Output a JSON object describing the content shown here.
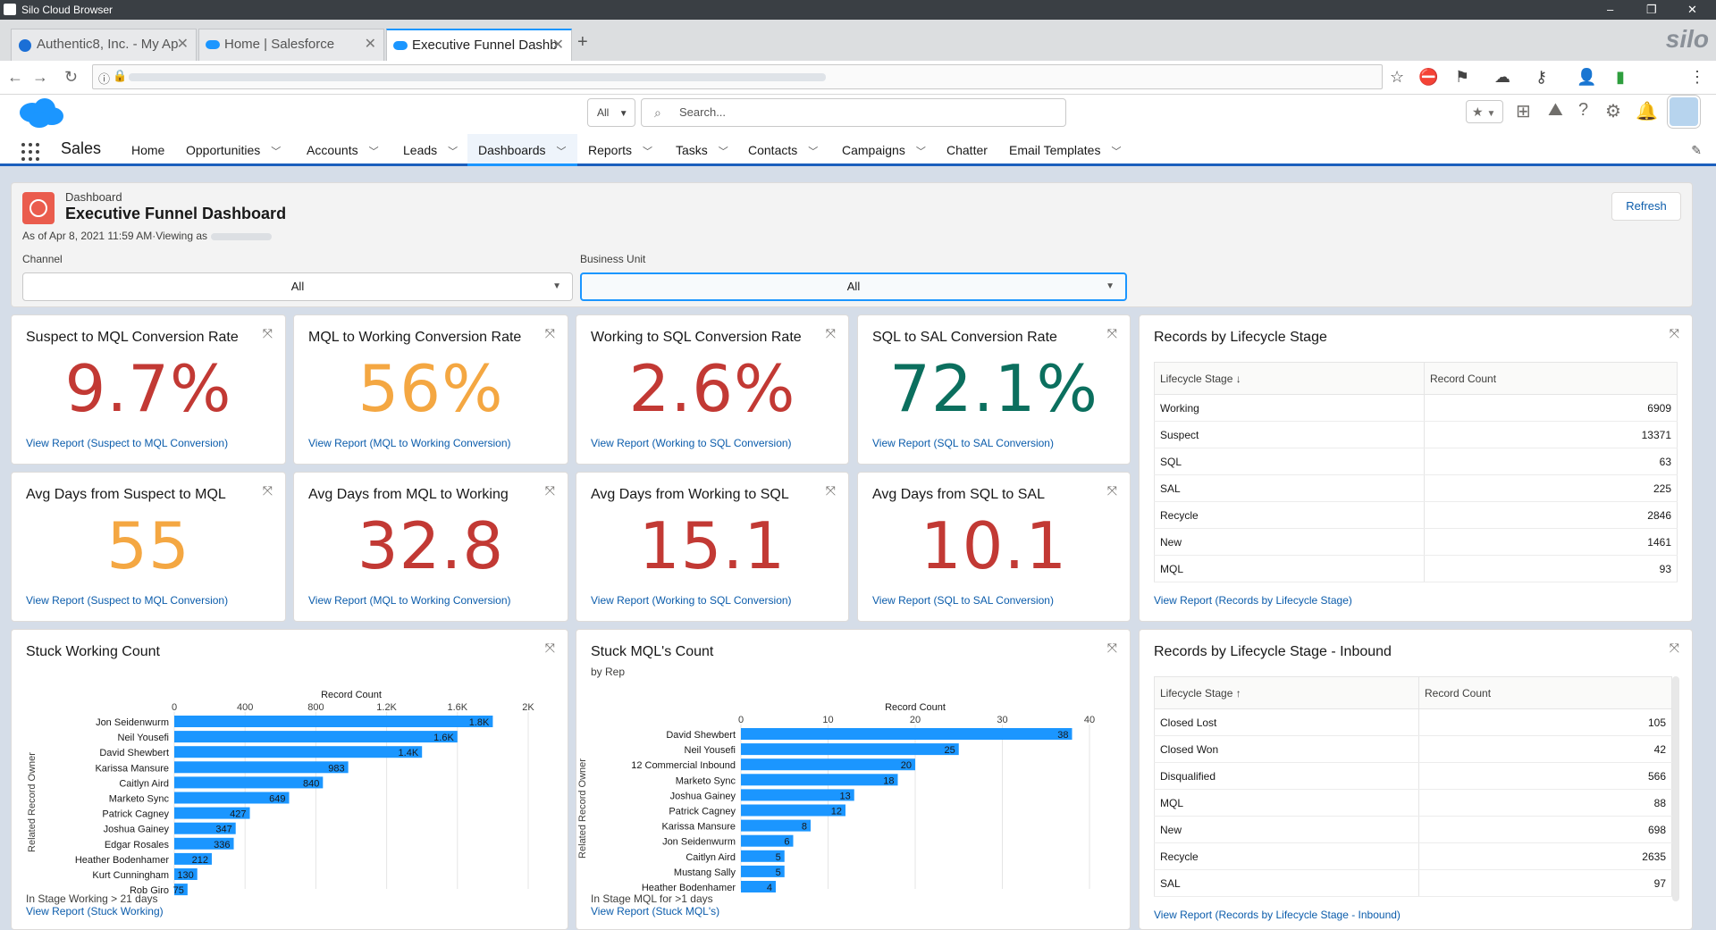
{
  "browser": {
    "title": "Silo Cloud Browser",
    "brand": "silo",
    "tabs": [
      {
        "label": "Authentic8, Inc. - My Ap"
      },
      {
        "label": "Home | Salesforce"
      },
      {
        "label": "Executive Funnel Dashb"
      }
    ],
    "new_tab": "+",
    "window_controls": [
      "–",
      "❐",
      "✕"
    ]
  },
  "header": {
    "search_scope": "All",
    "search_placeholder": "Search..."
  },
  "nav": {
    "app_name": "Sales",
    "items": [
      "Home",
      "Opportunities",
      "Accounts",
      "Leads",
      "Dashboards",
      "Reports",
      "Tasks",
      "Contacts",
      "Campaigns",
      "Chatter",
      "Email Templates"
    ],
    "active": "Dashboards"
  },
  "dashboard": {
    "label": "Dashboard",
    "title": "Executive Funnel Dashboard",
    "as_of": "As of Apr 8, 2021 11:59 AM·Viewing as",
    "refresh_label": "Refresh",
    "filters": [
      {
        "label": "Channel",
        "value": "All"
      },
      {
        "label": "Business Unit",
        "value": "All"
      }
    ]
  },
  "metrics": [
    {
      "title": "Suspect to MQL Conversion Rate",
      "value": "9.7%",
      "color": "#c23934",
      "link": "View Report (Suspect to MQL Conversion)"
    },
    {
      "title": "MQL to Working Conversion Rate",
      "value": "56%",
      "color": "#f4a742",
      "link": "View Report (MQL to Working Conversion)"
    },
    {
      "title": "Working to SQL Conversion Rate",
      "value": "2.6%",
      "color": "#c23934",
      "link": "View Report (Working to SQL Conversion)"
    },
    {
      "title": "SQL to SAL Conversion Rate",
      "value": "72.1%",
      "color": "#0b6f5e",
      "link": "View Report (SQL to SAL Conversion)"
    },
    {
      "title": "Avg Days from Suspect to MQL",
      "value": "55",
      "color": "#f4a742",
      "link": "View Report (Suspect to MQL Conversion)"
    },
    {
      "title": "Avg Days from MQL to Working",
      "value": "32.8",
      "color": "#c23934",
      "link": "View Report (MQL to Working Conversion)"
    },
    {
      "title": "Avg Days from Working to SQL",
      "value": "15.1",
      "color": "#c23934",
      "link": "View Report (Working to SQL Conversion)"
    },
    {
      "title": "Avg Days from SQL to SAL",
      "value": "10.1",
      "color": "#c23934",
      "link": "View Report (SQL to SAL Conversion)"
    }
  ],
  "lifecycle_table": {
    "title": "Records by Lifecycle Stage",
    "col1": "Lifecycle Stage ↓",
    "col2": "Record Count",
    "rows": [
      {
        "stage": "Working",
        "count": "6909"
      },
      {
        "stage": "Suspect",
        "count": "13371"
      },
      {
        "stage": "SQL",
        "count": "63"
      },
      {
        "stage": "SAL",
        "count": "225"
      },
      {
        "stage": "Recycle",
        "count": "2846"
      },
      {
        "stage": "New",
        "count": "1461"
      },
      {
        "stage": "MQL",
        "count": "93"
      }
    ],
    "link": "View Report (Records by Lifecycle Stage)"
  },
  "inbound_table": {
    "title": "Records by Lifecycle Stage - Inbound",
    "col1": "Lifecycle Stage ↑",
    "col2": "Record Count",
    "rows": [
      {
        "stage": "Closed Lost",
        "count": "105"
      },
      {
        "stage": "Closed Won",
        "count": "42"
      },
      {
        "stage": "Disqualified",
        "count": "566"
      },
      {
        "stage": "MQL",
        "count": "88"
      },
      {
        "stage": "New",
        "count": "698"
      },
      {
        "stage": "Recycle",
        "count": "2635"
      },
      {
        "stage": "SAL",
        "count": "97"
      }
    ],
    "link": "View Report (Records by Lifecycle Stage - Inbound)"
  },
  "stuck_working": {
    "title": "Stuck Working Count",
    "footnote": "In Stage Working > 21 days",
    "link": "View Report (Stuck Working)"
  },
  "stuck_mql": {
    "title": "Stuck MQL's Count",
    "subtitle": "by Rep",
    "footnote": "In Stage MQL for >1 days",
    "link": "View Report (Stuck MQL's)"
  },
  "chart_data": [
    {
      "type": "bar",
      "orientation": "horizontal",
      "title": "Stuck Working Count",
      "xlabel": "Record Count",
      "ylabel": "Related Record Owner",
      "xlim": [
        0,
        2000
      ],
      "xticks": [
        "0",
        "400",
        "800",
        "1.2K",
        "1.6K",
        "2K"
      ],
      "categories": [
        "Jon Seidenwurm",
        "Neil Yousefi",
        "David Shewbert",
        "Karissa Mansure",
        "Caitlyn Aird",
        "Marketo Sync",
        "Patrick Cagney",
        "Joshua Gainey",
        "Edgar Rosales",
        "Heather Bodenhamer",
        "Kurt Cunningham",
        "Rob Giro"
      ],
      "values": [
        1800,
        1600,
        1400,
        983,
        840,
        649,
        427,
        347,
        336,
        212,
        130,
        75
      ],
      "labels": [
        "1.8K",
        "1.6K",
        "1.4K",
        "983",
        "840",
        "649",
        "427",
        "347",
        "336",
        "212",
        "130",
        "75"
      ],
      "color": "#1b96ff"
    },
    {
      "type": "bar",
      "orientation": "horizontal",
      "title": "Stuck MQL's Count",
      "subtitle": "by Rep",
      "xlabel": "Record Count",
      "ylabel": "Related Record Owner",
      "xlim": [
        0,
        40
      ],
      "xticks": [
        "0",
        "10",
        "20",
        "30",
        "40"
      ],
      "categories": [
        "David Shewbert",
        "Neil Yousefi",
        "12 Commercial Inbound",
        "Marketo Sync",
        "Joshua Gainey",
        "Patrick Cagney",
        "Karissa Mansure",
        "Jon Seidenwurm",
        "Caitlyn Aird",
        "Mustang Sally",
        "Heather Bodenhamer"
      ],
      "values": [
        38,
        25,
        20,
        18,
        13,
        12,
        8,
        6,
        5,
        5,
        4
      ],
      "labels": [
        "38",
        "25",
        "20",
        "18",
        "13",
        "12",
        "8",
        "6",
        "5",
        "5",
        "4"
      ],
      "color": "#1b96ff"
    }
  ]
}
